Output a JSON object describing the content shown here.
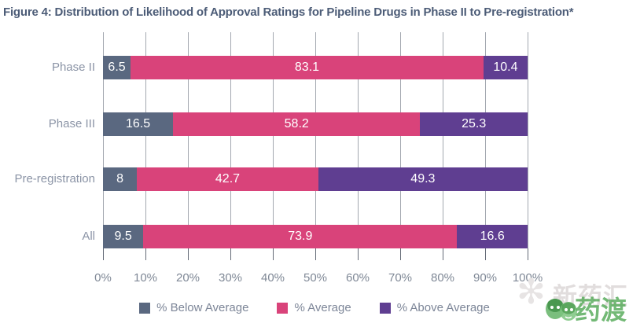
{
  "title": "Figure 4: Distribution of Likelihood of Approval Ratings for Pipeline Drugs in Phase II to Pre-registration*",
  "chart_data": {
    "type": "bar",
    "variant": "horizontal-stacked",
    "title": "Figure 4: Distribution of Likelihood of Approval Ratings for Pipeline Drugs in Phase II to Pre-registration*",
    "categories": [
      "Phase II",
      "Phase III",
      "Pre-registration",
      "All"
    ],
    "series": [
      {
        "name": "% Below Average",
        "color": "#5a6880",
        "values": [
          6.5,
          16.5,
          8,
          9.5
        ],
        "labels": [
          "6.5",
          "16.5",
          "8",
          "9.5"
        ]
      },
      {
        "name": "% Average",
        "color": "#d9437a",
        "values": [
          83.1,
          58.2,
          42.7,
          73.9
        ],
        "labels": [
          "83.1",
          "58.2",
          "42.7",
          "73.9"
        ]
      },
      {
        "name": "% Above Average",
        "color": "#5f3e91",
        "values": [
          10.4,
          25.3,
          49.3,
          16.6
        ],
        "labels": [
          "10.4",
          "25.3",
          "49.3",
          "16.6"
        ]
      }
    ],
    "x_ticks": [
      "0%",
      "10%",
      "20%",
      "30%",
      "40%",
      "50%",
      "60%",
      "70%",
      "80%",
      "90%",
      "100%"
    ],
    "xlim": [
      0,
      100
    ],
    "grid": "vertical",
    "legend_position": "bottom"
  },
  "watermark": {
    "background_text": "新药汇",
    "logo_text": "药渡",
    "logo_color": "#55aa58",
    "flower_glyph": "✻"
  },
  "colors": {
    "title_text": "#4c5c77",
    "category_label": "#8b94a6",
    "tick_label": "#7f8896",
    "legend_label": "#7d8698",
    "gridline": "#a3a8b0"
  }
}
